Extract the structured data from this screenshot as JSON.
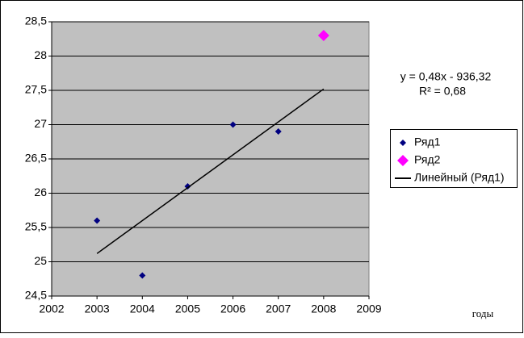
{
  "chart_data": {
    "type": "scatter",
    "x_label": "годы",
    "xlim": [
      2002,
      2009
    ],
    "xticks": [
      2002,
      2003,
      2004,
      2005,
      2006,
      2007,
      2008,
      2009
    ],
    "ylim": [
      24.5,
      28.5
    ],
    "yticks": [
      {
        "value": 24.5,
        "label": "24,5"
      },
      25,
      {
        "value": 25.5,
        "label": "25,5"
      },
      26,
      {
        "value": 26.5,
        "label": "26,5"
      },
      27,
      {
        "value": 27.5,
        "label": "27,5"
      },
      28,
      {
        "value": 28.5,
        "label": "28,5"
      }
    ],
    "grid": true,
    "plot_background": "#c0c0c0",
    "legend": "right",
    "series": [
      {
        "name": "Ряд1",
        "color": "#000080",
        "marker_size": 4,
        "x": [
          2003,
          2004,
          2005,
          2006,
          2007
        ],
        "values": [
          25.6,
          24.8,
          26.1,
          27.0,
          26.9
        ]
      },
      {
        "name": "Ряд2",
        "color": "#ff00ff",
        "marker_size": 7,
        "x": [
          2008
        ],
        "values": [
          28.3
        ]
      },
      {
        "name": "Линейный (Ряд1)",
        "color": "#000000",
        "type": "line",
        "x": [
          2003,
          2008
        ],
        "values": [
          25.12,
          27.52
        ]
      }
    ],
    "annotations": [
      "y = 0,48x - 936,32",
      "R² = 0,68"
    ]
  }
}
